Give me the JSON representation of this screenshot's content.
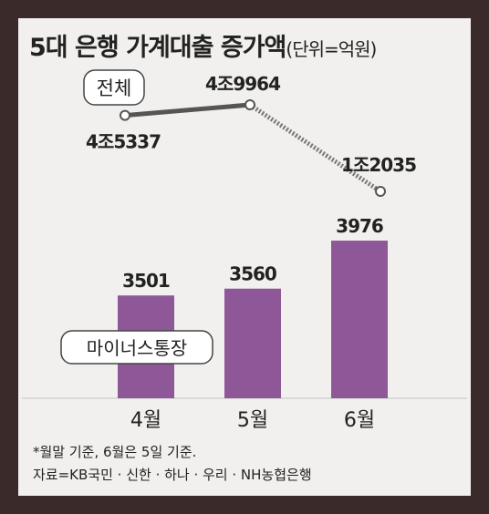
{
  "title": "5대 은행 가계대출 증가액",
  "unit": "(단위=억원)",
  "chart_data": {
    "type": "bar",
    "categories": [
      "4월",
      "5월",
      "6월"
    ],
    "series": [
      {
        "name": "마이너스통장",
        "type": "bar",
        "values": [
          3501,
          3560,
          3976
        ],
        "labels": [
          "3501",
          "3560",
          "3976"
        ]
      },
      {
        "name": "전체",
        "type": "line",
        "values": [
          45337,
          49964,
          12035
        ],
        "labels": [
          "4조5337",
          "4조9964",
          "1조2035"
        ]
      }
    ],
    "colors": {
      "bar": "#8e5898",
      "line": "#555555",
      "background": "#f1f0ee"
    }
  },
  "footnote": [
    "*월말 기준, 6월은 5일 기준.",
    "자료=KB국민 · 신한 · 하나 · 우리 · NH농협은행"
  ]
}
